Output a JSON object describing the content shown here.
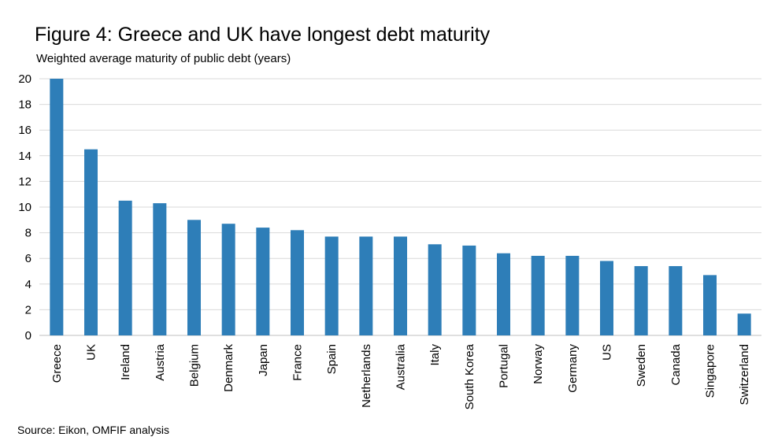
{
  "title": "Figure 4: Greece and UK have longest debt maturity",
  "subtitle": "Weighted average maturity of public debt (years)",
  "source": "Source: Eikon, OMFIF analysis",
  "chart_data": {
    "type": "bar",
    "title": "Figure 4: Greece and UK have longest debt maturity",
    "ylabel": "Weighted average maturity of public debt (years)",
    "xlabel": "",
    "categories": [
      "Greece",
      "UK",
      "Ireland",
      "Austria",
      "Belgium",
      "Denmark",
      "Japan",
      "France",
      "Spain",
      "Netherlands",
      "Australia",
      "Italy",
      "South Korea",
      "Portugal",
      "Norway",
      "Germany",
      "US",
      "Sweden",
      "Canada",
      "Singapore",
      "Switzerland"
    ],
    "values": [
      20.0,
      14.5,
      10.5,
      10.3,
      9.0,
      8.7,
      8.4,
      8.2,
      7.7,
      7.7,
      7.7,
      7.1,
      7.0,
      6.4,
      6.2,
      6.2,
      5.8,
      5.4,
      5.4,
      4.7,
      1.7
    ],
    "ylim": [
      0,
      20
    ],
    "yticks": [
      0,
      2,
      4,
      6,
      8,
      10,
      12,
      14,
      16,
      18,
      20
    ],
    "grid": true,
    "bar_color": "#2e7eb8",
    "grid_color": "#d9d9d9"
  }
}
